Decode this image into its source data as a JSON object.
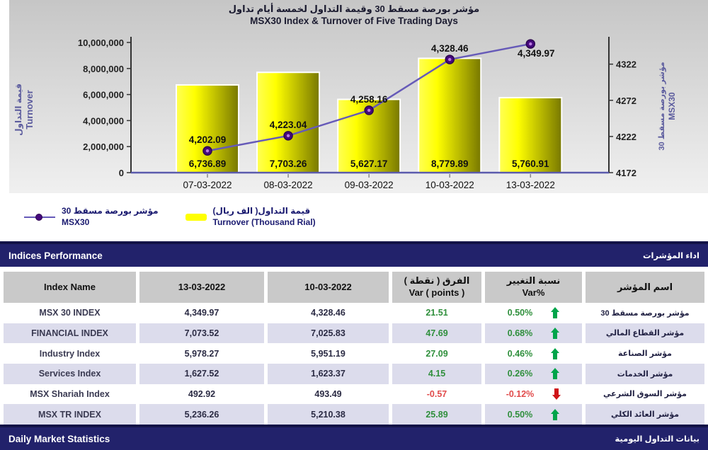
{
  "chart": {
    "title_ar": "مؤشر بورصة مسقط 30 وقيمة التداول لخمسة أيام تداول",
    "title_en": "MSX30 Index & Turnover of Five Trading Days",
    "left_axis_label_ar": "قيمة التداول",
    "left_axis_label_en": "Turnover",
    "right_axis_label_ar": "مؤشر بورصة مسقط 30",
    "right_axis_label_en": "MSX30",
    "legend": [
      {
        "symbol": "line-marker",
        "label_ar": "مؤشر بورصة مسقط 30",
        "label_en": "MSX30"
      },
      {
        "symbol": "bar-swatch",
        "label_ar": "قيمة التداول( الف ريال)",
        "label_en": "Turnover (Thousand Rial)"
      }
    ],
    "colors": {
      "bar_light": "#ffff55",
      "bar_mid": "#ffff00",
      "bar_dark": "#787800",
      "line": "#665ab8",
      "marker": "#45087c",
      "marker_core": "#b87ae0",
      "axis_label": "#5c5c9e",
      "baseline": "#5b5bad",
      "bg_top": "#c6c6c6",
      "bg_bottom": "#f0f0f0"
    }
  },
  "chart_data": {
    "type": "bar+line",
    "title": "MSX30 Index & Turnover of Five Trading Days",
    "categories": [
      "07-03-2022",
      "08-03-2022",
      "09-03-2022",
      "10-03-2022",
      "13-03-2022"
    ],
    "series": [
      {
        "name": "Turnover (Thousand Rial)",
        "type": "bar",
        "axis": "left",
        "values": [
          6736.89,
          7703.26,
          5627.17,
          8779.89,
          5760.91
        ],
        "note": "plotted on left axis as value x 1000"
      },
      {
        "name": "MSX30",
        "type": "line",
        "axis": "right",
        "values": [
          4202.09,
          4223.04,
          4258.16,
          4328.46,
          4349.97
        ]
      }
    ],
    "left_axis": {
      "min": 0,
      "max": 10000000,
      "ticks": [
        0,
        2000000,
        4000000,
        6000000,
        8000000,
        10000000
      ]
    },
    "right_axis": {
      "min": 4172,
      "plot_max": 4352,
      "ticks": [
        4172,
        4222,
        4272,
        4322
      ]
    },
    "grid": false,
    "legend_position": "bottom-left"
  },
  "sections": {
    "indices_performance": {
      "title_en": "Indices Performance",
      "title_ar": "اداء المؤشرات"
    },
    "daily_market_statistics": {
      "title_en": "Daily Market Statistics",
      "title_ar": "بيانات التداول اليومية"
    }
  },
  "table": {
    "headers": [
      {
        "lines": [
          "Index Name"
        ]
      },
      {
        "lines": [
          "13-03-2022"
        ]
      },
      {
        "lines": [
          "10-03-2022"
        ]
      },
      {
        "lines": [
          "الفرق ( نقطة )",
          "Var ( points )"
        ]
      },
      {
        "lines": [
          "نسبة التغيير",
          "Var%"
        ]
      },
      {
        "lines": [
          "اسم المؤشر"
        ]
      }
    ],
    "rows": [
      {
        "index_name": "MSX 30 INDEX",
        "latest": "4,349.97",
        "previous": "4,328.46",
        "var_points": "21.51",
        "var_pct": "0.50%",
        "direction": "up",
        "index_name_ar": "مؤشر بورصة مسقط 30"
      },
      {
        "index_name": "FINANCIAL INDEX",
        "latest": "7,073.52",
        "previous": "7,025.83",
        "var_points": "47.69",
        "var_pct": "0.68%",
        "direction": "up",
        "index_name_ar": "مؤشر القطاع المالي"
      },
      {
        "index_name": "Industry Index",
        "latest": "5,978.27",
        "previous": "5,951.19",
        "var_points": "27.09",
        "var_pct": "0.46%",
        "direction": "up",
        "index_name_ar": "مؤشر الصناعة"
      },
      {
        "index_name": "Services Index",
        "latest": "1,627.52",
        "previous": "1,623.37",
        "var_points": "4.15",
        "var_pct": "0.26%",
        "direction": "up",
        "index_name_ar": "مؤشر الخدمات"
      },
      {
        "index_name": "MSX Shariah Index",
        "latest": "492.92",
        "previous": "493.49",
        "var_points": "-0.57",
        "var_pct": "-0.12%",
        "direction": "down",
        "index_name_ar": "مؤشر السوق الشرعي"
      },
      {
        "index_name": "MSX TR INDEX",
        "latest": "5,236.26",
        "previous": "5,210.38",
        "var_points": "25.89",
        "var_pct": "0.50%",
        "direction": "up",
        "index_name_ar": "مؤشر العائد الكلي"
      }
    ],
    "status_colors": {
      "green_text": "#2f8f3c",
      "green_arrow": "#00a44a",
      "red_text": "#e14b4b",
      "red_arrow": "#cf1418",
      "navy": "#22226b",
      "row_alt": "#dcdcec",
      "header_cell": "#c9c9c9"
    }
  }
}
